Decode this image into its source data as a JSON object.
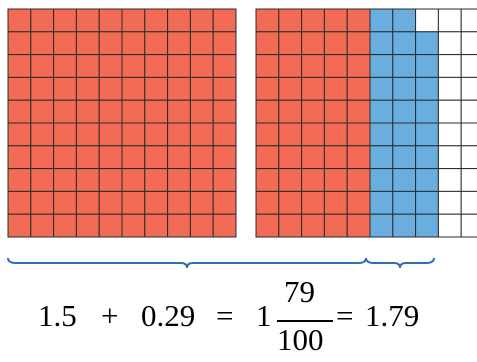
{
  "grids": [
    {
      "name": "first-hundred-grid",
      "rows": 10,
      "cols": 10,
      "red_columns": 10,
      "blue_columns": 0,
      "blue_cells_in_last_blue_column": 0
    },
    {
      "name": "second-hundred-grid",
      "rows": 10,
      "cols": 10,
      "red_columns": 5,
      "blue_columns": 3,
      "blue_cells_in_last_blue_column": 9
    }
  ],
  "colors": {
    "red": "#f26b55",
    "blue": "#6aaee0",
    "grid_line": "#2b2b2b",
    "brace": "#2f6db5",
    "empty": "#ffffff"
  },
  "equation": {
    "term1": "1.5",
    "plus": "+",
    "term2": "0.29",
    "equals1": "=",
    "whole": "1",
    "numerator": "79",
    "denominator": "100",
    "equals2": "=",
    "result": "1.79"
  }
}
